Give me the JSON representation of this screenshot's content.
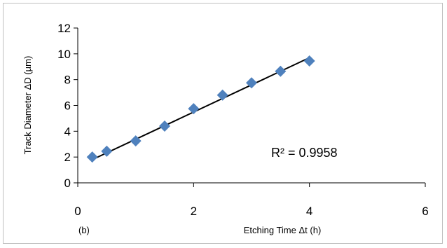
{
  "chart_data": {
    "type": "scatter",
    "xlabel": "Etching Time Δt (h)",
    "ylabel": "Track Diameter ΔD (µm)",
    "panel_label": "(b)",
    "xlim": [
      0,
      6
    ],
    "ylim": [
      0,
      12
    ],
    "xticks": [
      0,
      2,
      4,
      6
    ],
    "yticks": [
      0,
      2,
      4,
      6,
      8,
      10,
      12
    ],
    "grid": false,
    "legend": "none",
    "marker": "diamond",
    "marker_color": "#4f81bd",
    "trendline_color": "#000000",
    "points": [
      {
        "x": 0.25,
        "y": 2.0
      },
      {
        "x": 0.5,
        "y": 2.45
      },
      {
        "x": 1.0,
        "y": 3.25
      },
      {
        "x": 1.5,
        "y": 4.4
      },
      {
        "x": 2.0,
        "y": 5.75
      },
      {
        "x": 2.5,
        "y": 6.8
      },
      {
        "x": 3.0,
        "y": 7.75
      },
      {
        "x": 3.5,
        "y": 8.65
      },
      {
        "x": 4.0,
        "y": 9.45
      }
    ],
    "trendline": {
      "x_start": 0.25,
      "y_start": 1.8,
      "x_end": 4.0,
      "y_end": 9.7
    },
    "annotation": "R² = 0.9958"
  }
}
